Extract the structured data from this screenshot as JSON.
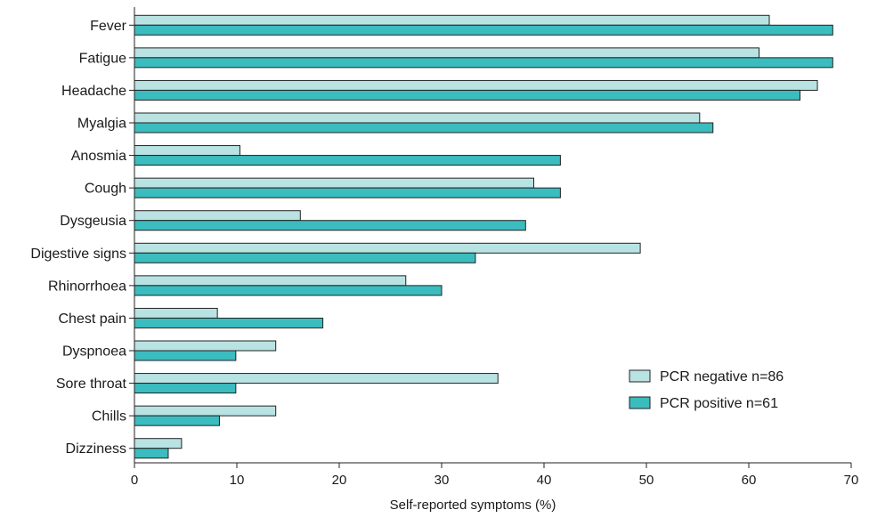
{
  "chart_data": {
    "type": "bar",
    "orientation": "horizontal",
    "xlabel": "Self-reported symptoms (%)",
    "xlim": [
      0,
      70
    ],
    "xticks": [
      0,
      10,
      20,
      30,
      40,
      50,
      60,
      70
    ],
    "grid": false,
    "legend_position": "bottom-right",
    "categories": [
      "Fever",
      "Fatigue",
      "Headache",
      "Myalgia",
      "Anosmia",
      "Cough",
      "Dysgeusia",
      "Digestive signs",
      "Rhinorrhoea",
      "Chest pain",
      "Dyspnoea",
      "Sore throat",
      "Chills",
      "Dizziness"
    ],
    "series": [
      {
        "name": "PCR negative n=86",
        "color": "#b9e3e3",
        "values": [
          62.0,
          61.0,
          66.7,
          55.2,
          10.3,
          39.0,
          16.2,
          49.4,
          26.5,
          8.1,
          13.8,
          35.5,
          13.8,
          4.6
        ]
      },
      {
        "name": "PCR positive n=61",
        "color": "#3bbcbf",
        "values": [
          68.2,
          68.2,
          65.0,
          56.5,
          41.6,
          41.6,
          38.2,
          33.3,
          30.0,
          18.4,
          9.9,
          9.9,
          8.3,
          3.3
        ]
      }
    ]
  }
}
